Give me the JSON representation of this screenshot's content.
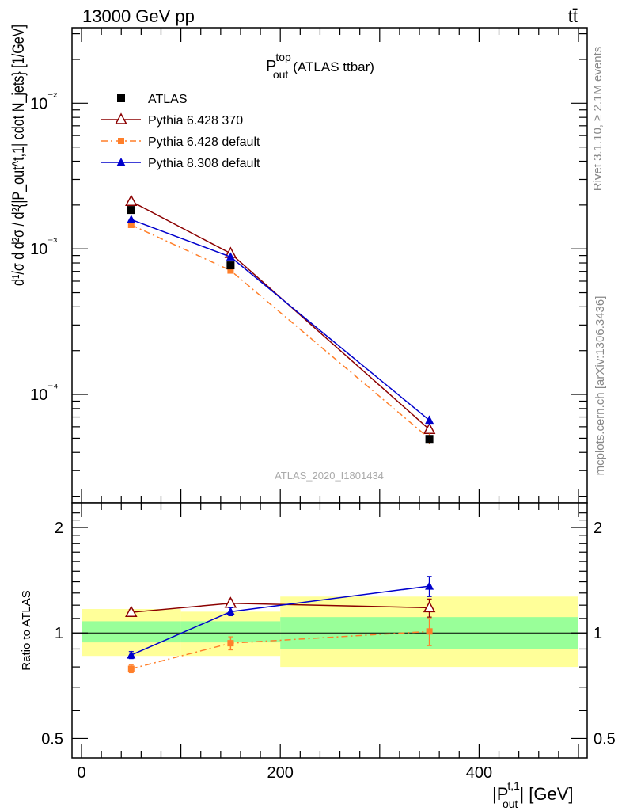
{
  "header": {
    "energy": "13000 GeV pp",
    "process": "tt̄"
  },
  "side_labels": {
    "rivet": "Rivet 3.1.10, ≥ 2.1M events",
    "mcplots": "mcplots.cern.ch [arXiv:1306.3436]"
  },
  "main_title": {
    "p": "P",
    "sup": "top",
    "sub": "out",
    "tail": "(ATLAS ttbar)"
  },
  "watermark": "ATLAS_2020_I1801434",
  "main_ylabel": "d¹/σ d d²σ / d²{|P_out^t,1| cdot N_jets} [1/GeV]",
  "ratio_ylabel": "Ratio to ATLAS",
  "xlabel": {
    "p": "|P",
    "sup": "t,1",
    "sub": "out",
    "tail": "| [GeV]"
  },
  "colors": {
    "atlas": "#000000",
    "py6_370": "#8b0000",
    "py6_default": "#ff7f2a",
    "py8_default": "#0000cc",
    "band_inner": "#99ff99",
    "band_outer": "#ffff99"
  },
  "chart_data": [
    {
      "type": "scatter",
      "panel": "main",
      "x": [
        50,
        150,
        350
      ],
      "yscale": "log",
      "ylim": [
        1.8e-05,
        0.033
      ],
      "xlim": [
        -5,
        510
      ],
      "yticks": [
        0.0001,
        0.001,
        0.01
      ],
      "yticklabels": [
        "10⁻⁴",
        "10⁻³",
        "10⁻²"
      ],
      "legend_position": "top-left",
      "series": [
        {
          "name": "ATLAS",
          "marker": "square",
          "values": [
            0.00185,
            0.00077,
            4.95e-05
          ],
          "err": [
            5e-05,
            3e-05,
            3e-06
          ]
        },
        {
          "name": "Pythia 6.428 370",
          "marker": "open-triangle",
          "line": "solid",
          "values": [
            0.00212,
            0.00093,
            5.75e-05
          ],
          "err": [
            3e-05,
            2e-05,
            3e-06
          ]
        },
        {
          "name": "Pythia 6.428 default",
          "marker": "small-square",
          "line": "dashdot",
          "values": [
            0.00146,
            0.00071,
            4.98e-05
          ],
          "err": [
            3e-05,
            2e-05,
            4e-06
          ]
        },
        {
          "name": "Pythia 8.308 default",
          "marker": "filled-triangle",
          "line": "solid",
          "values": [
            0.00159,
            0.00088,
            6.65e-05
          ],
          "err": [
            3e-05,
            2e-05,
            5e-06
          ]
        }
      ]
    },
    {
      "type": "scatter",
      "panel": "ratio",
      "x": [
        50,
        150,
        350
      ],
      "ylabel": "Ratio to ATLAS",
      "yscale": "log",
      "ylim": [
        0.44,
        2.35
      ],
      "yticks": [
        0.5,
        1,
        2
      ],
      "yticklabels": [
        "0.5",
        "1",
        "2"
      ],
      "xticks": [
        0,
        200,
        400
      ],
      "xticklabels": [
        "0",
        "200",
        "400"
      ],
      "bands": [
        {
          "x0": 0,
          "x1": 100,
          "inner": [
            0.94,
            1.08
          ],
          "outer": [
            0.86,
            1.17
          ]
        },
        {
          "x0": 100,
          "x1": 200,
          "inner": [
            0.94,
            1.08
          ],
          "outer": [
            0.86,
            1.15
          ]
        },
        {
          "x0": 200,
          "x1": 500,
          "inner": [
            0.9,
            1.11
          ],
          "outer": [
            0.8,
            1.27
          ]
        }
      ],
      "series": [
        {
          "name": "Pythia 6.428 370",
          "values": [
            1.145,
            1.215,
            1.18
          ],
          "err": [
            0.02,
            0.03,
            0.07
          ]
        },
        {
          "name": "Pythia 6.428 default",
          "values": [
            0.79,
            0.935,
            1.01
          ],
          "err": [
            0.02,
            0.04,
            0.09
          ]
        },
        {
          "name": "Pythia 8.308 default",
          "values": [
            0.865,
            1.15,
            1.36
          ],
          "err": [
            0.02,
            0.03,
            0.09
          ]
        }
      ]
    }
  ]
}
